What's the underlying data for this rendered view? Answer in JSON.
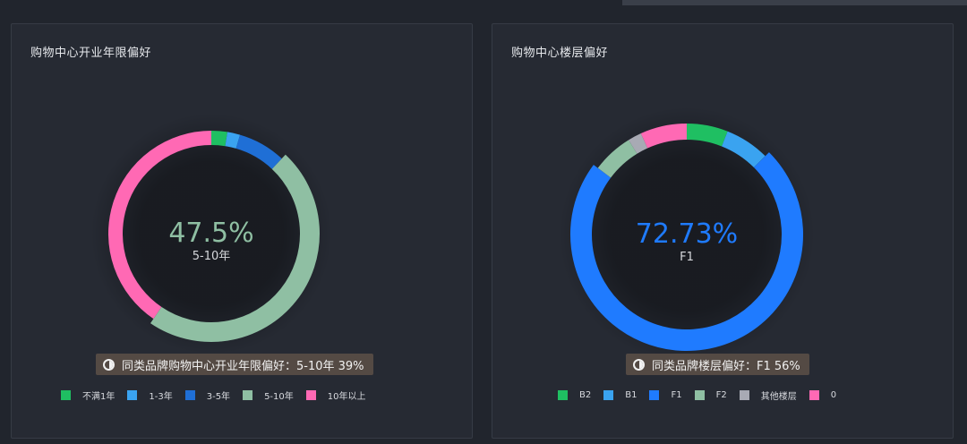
{
  "chart_data": [
    {
      "type": "pie",
      "title": "购物中心开业年限偏好",
      "categories": [
        "不满1年",
        "1-3年",
        "3-5年",
        "5-10年",
        "10年以上"
      ],
      "values": [
        2.5,
        2.0,
        7.5,
        47.5,
        40.5
      ],
      "colors": [
        "#1fbf62",
        "#3aa3f0",
        "#1f6fd6",
        "#8fbfa3",
        "#ff69b4"
      ],
      "highlight": {
        "value": "47.5%",
        "label": "5-10年",
        "color": "#8fbfa3"
      },
      "note": "同类品牌购物中心开业年限偏好：5-10年 39%",
      "legend": "bottom"
    },
    {
      "type": "pie",
      "title": "购物中心楼层偏好",
      "categories": [
        "B2",
        "B1",
        "F1",
        "F2",
        "其他楼层",
        "0"
      ],
      "values": [
        6.0,
        6.5,
        72.73,
        6.0,
        2.0,
        6.77
      ],
      "colors": [
        "#1fbf62",
        "#3aa3f0",
        "#1f7bff",
        "#8fbfa3",
        "#a8aab4",
        "#ff69b4"
      ],
      "highlight": {
        "value": "72.73%",
        "label": "F1",
        "color": "#1f7bff"
      },
      "note": "同类品牌楼层偏好：F1 56%",
      "legend": "bottom"
    }
  ]
}
